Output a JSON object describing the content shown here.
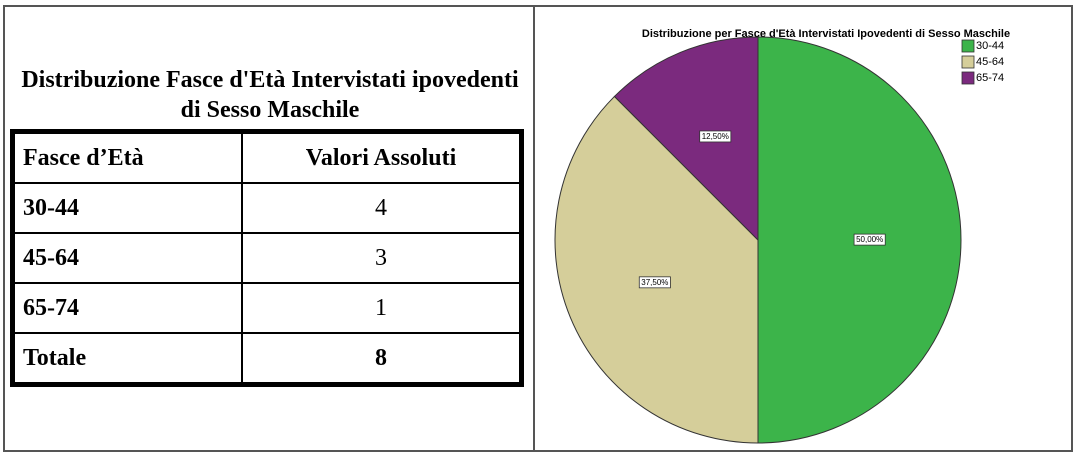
{
  "table": {
    "title": "Distribuzione Fasce d'Età Intervistati ipovedenti di Sesso Maschile",
    "header": [
      "Fasce d’Età",
      "Valori Assoluti"
    ],
    "rows": [
      [
        "30-44",
        4
      ],
      [
        "45-64",
        3
      ],
      [
        "65-74",
        1
      ],
      [
        "Totale",
        8
      ]
    ]
  },
  "chart_data": {
    "type": "pie",
    "title": "Distribuzione per Fasce d'Età Intervistati Ipovedenti di Sesso Maschile",
    "categories": [
      "30-44",
      "45-64",
      "65-74"
    ],
    "values": [
      50,
      37.5,
      12.5
    ],
    "value_labels": [
      "50,00%",
      "37,50%",
      "12,50%"
    ],
    "colors": [
      "#3cb44a",
      "#d5ce9a",
      "#7b2a7e"
    ],
    "legend": "top-right"
  }
}
